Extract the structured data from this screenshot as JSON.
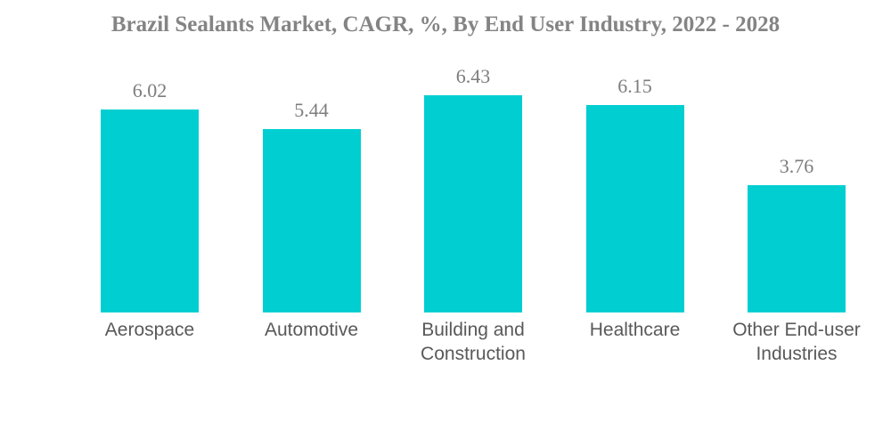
{
  "title": "Brazil Sealants Market, CAGR, %, By End User Industry, 2022 - 2028",
  "colors": {
    "background": "#FFFFFF",
    "bar": "#00CED1",
    "title_text": "#848484",
    "value_text": "#7D7D7D",
    "category_text": "#595959"
  },
  "chart_data": {
    "type": "bar",
    "title": "Brazil Sealants Market, CAGR, %, By End User Industry, 2022 - 2028",
    "categories": [
      "Aerospace",
      "Automotive",
      "Building and Construction",
      "Healthcare",
      "Other End-user Industries"
    ],
    "values": [
      6.02,
      5.44,
      6.43,
      6.15,
      3.76
    ],
    "value_labels": [
      "6.02",
      "5.44",
      "6.43",
      "6.15",
      "3.76"
    ],
    "series_name": "CAGR %",
    "xlabel": "",
    "ylabel": "",
    "ylim": [
      0,
      7
    ],
    "grid": false,
    "legend": false,
    "axes_visible": false,
    "bar_color": "#00CED1"
  }
}
